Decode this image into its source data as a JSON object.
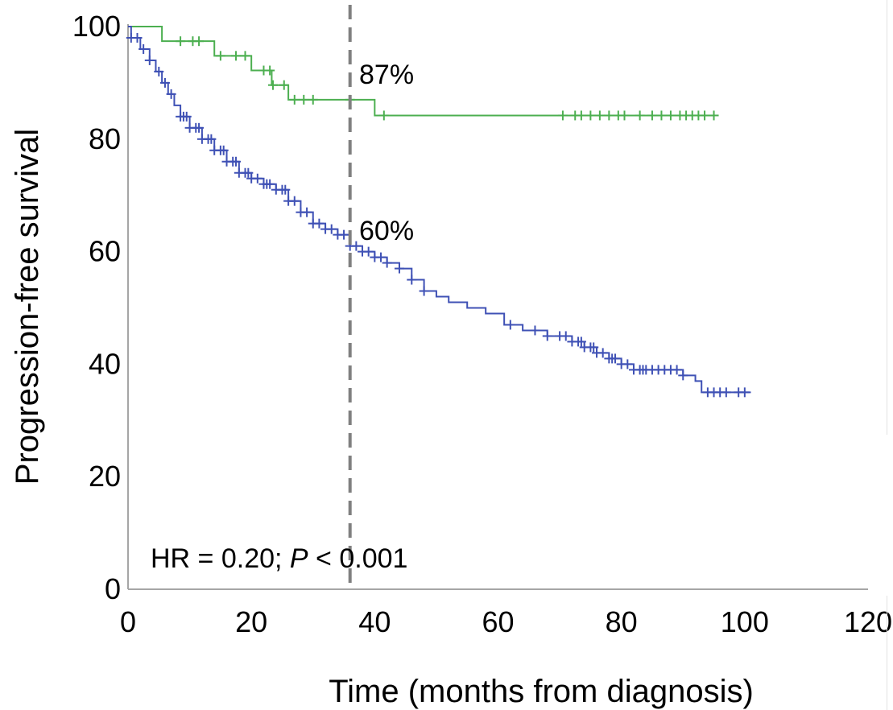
{
  "chart_data": {
    "type": "line",
    "step": true,
    "xlabel": "Time (months from diagnosis)",
    "ylabel": "Progression-free survival",
    "xlim": [
      0,
      120
    ],
    "ylim": [
      0,
      100
    ],
    "x_ticks": [
      "0",
      "20",
      "40",
      "60",
      "80",
      "100",
      "120"
    ],
    "y_ticks": [
      "0",
      "20",
      "40",
      "60",
      "80",
      "100"
    ],
    "grid": false,
    "reference_line": {
      "x": 36,
      "style": "dashed",
      "color": "#808080"
    },
    "annotations": {
      "upper_label": "87%",
      "lower_label": "60%",
      "hr_prefix": "HR = 0.20; ",
      "hr_p": "P",
      "hr_suffix": " < 0.001"
    },
    "series": [
      {
        "color": "#4caf50",
        "steps": [
          [
            0,
            100
          ],
          [
            5.5,
            97.4
          ],
          [
            14,
            94.8
          ],
          [
            20,
            92.2
          ],
          [
            23.3,
            89.6
          ],
          [
            26,
            87.0
          ],
          [
            40,
            84.2
          ],
          [
            95,
            84.2
          ]
        ],
        "censor_x": [
          8.5,
          10.5,
          11.5,
          15,
          17.5,
          19,
          22,
          23,
          23.5,
          25.3,
          27,
          28.5,
          30,
          36,
          41.5,
          70.5,
          72.5,
          73.5,
          75,
          76.5,
          78,
          79.5,
          80.5,
          83,
          85,
          86.5,
          88,
          89.5,
          90.5,
          91.5,
          92.5,
          93.5,
          95
        ]
      },
      {
        "color": "#3f51b5",
        "steps": [
          [
            0,
            100
          ],
          [
            0.5,
            98
          ],
          [
            2,
            96
          ],
          [
            3.5,
            94
          ],
          [
            4.5,
            92
          ],
          [
            5.5,
            90
          ],
          [
            6.5,
            88
          ],
          [
            7.5,
            86
          ],
          [
            8.5,
            84
          ],
          [
            10,
            82
          ],
          [
            12,
            80
          ],
          [
            14,
            78
          ],
          [
            16,
            76
          ],
          [
            18,
            74
          ],
          [
            20,
            73
          ],
          [
            22,
            72
          ],
          [
            24,
            71
          ],
          [
            26,
            69
          ],
          [
            28,
            67
          ],
          [
            30,
            65
          ],
          [
            32,
            64
          ],
          [
            34,
            63
          ],
          [
            36,
            61
          ],
          [
            38,
            60
          ],
          [
            40,
            59
          ],
          [
            42,
            58
          ],
          [
            44,
            57
          ],
          [
            46,
            55
          ],
          [
            48,
            53
          ],
          [
            50,
            52
          ],
          [
            52,
            51
          ],
          [
            55,
            50
          ],
          [
            58,
            49
          ],
          [
            61,
            47
          ],
          [
            64,
            46
          ],
          [
            68,
            45
          ],
          [
            72,
            44
          ],
          [
            74,
            43
          ],
          [
            76,
            42
          ],
          [
            78,
            41
          ],
          [
            80,
            40
          ],
          [
            82,
            39
          ],
          [
            90,
            38
          ],
          [
            92,
            37
          ],
          [
            93,
            35
          ],
          [
            101,
            35
          ]
        ],
        "censor_x": [
          0.5,
          1.5,
          2.5,
          3.5,
          5,
          6,
          7,
          8.5,
          9,
          9.5,
          10,
          11,
          11.5,
          12,
          13,
          13.5,
          14,
          15,
          15.5,
          16,
          17,
          17.5,
          18,
          19,
          19.5,
          20,
          21,
          22,
          22.5,
          23,
          24,
          25,
          25.5,
          26,
          27,
          28,
          29,
          30,
          31,
          32,
          33,
          34,
          35,
          36,
          37,
          38,
          39,
          40,
          41,
          42,
          44,
          46,
          48,
          62,
          66,
          68,
          70,
          71,
          72,
          73,
          73.5,
          74,
          75,
          75.5,
          76,
          77,
          78,
          78.5,
          79,
          80,
          81,
          82,
          83,
          83.5,
          84,
          85,
          86,
          87,
          88,
          89,
          90,
          94,
          95,
          96,
          97,
          99,
          100
        ]
      }
    ]
  }
}
